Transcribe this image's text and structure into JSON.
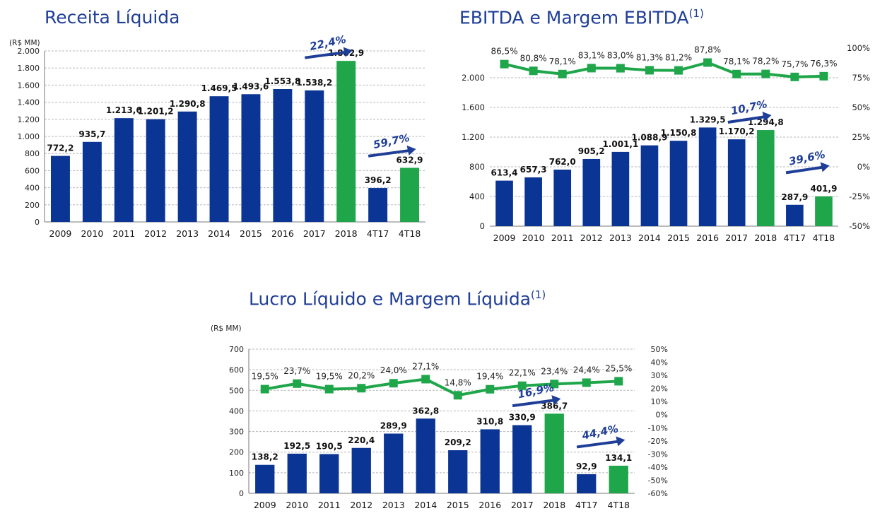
{
  "colors": {
    "bar_blue": "#0b3594",
    "bar_green": "#1fa64a",
    "title_blue": "#1f3e97",
    "arrow_blue": "#1f3e97"
  },
  "chart_data": [
    {
      "id": "receita",
      "type": "bar",
      "title": "Receita Líquida",
      "title_sup": "",
      "unit": "(R$ MM)",
      "categories": [
        "2009",
        "2010",
        "2011",
        "2012",
        "2013",
        "2014",
        "2015",
        "2016",
        "2017",
        "2018",
        "4T17",
        "4T18"
      ],
      "values": [
        772.2,
        935.7,
        1213.6,
        1201.2,
        1290.8,
        1469.5,
        1493.6,
        1553.8,
        1538.2,
        1882.9,
        396.2,
        632.9
      ],
      "value_labels": [
        "772,2",
        "935,7",
        "1.213,6",
        "1.201,2",
        "1.290,8",
        "1.469,5",
        "1.493,6",
        "1.553,8",
        "1.538,2",
        "1.882,9",
        "396,2",
        "632,9"
      ],
      "highlight": [
        9,
        11
      ],
      "ylim": [
        0,
        2000
      ],
      "yticks": [
        0,
        200,
        400,
        600,
        800,
        1000,
        1200,
        1400,
        1600,
        1800,
        2000
      ],
      "ytick_labels": [
        "0",
        "200",
        "400",
        "600",
        "800",
        "1.000",
        "1.200",
        "1.400",
        "1.600",
        "1.800",
        "2.000"
      ],
      "grid": true,
      "annotations": [
        {
          "text": "22,4%",
          "from": 8,
          "to": 9,
          "arrow_at_value": 1920
        },
        {
          "text": "59,7%",
          "from": 10,
          "to": 11,
          "arrow_at_value": 770
        }
      ]
    },
    {
      "id": "ebitda",
      "type": "bar",
      "title": "EBITDA e Margem EBITDA",
      "title_sup": "(1)",
      "unit": "",
      "categories": [
        "2009",
        "2010",
        "2011",
        "2012",
        "2013",
        "2014",
        "2015",
        "2016",
        "2017",
        "2018",
        "4T17",
        "4T18"
      ],
      "values": [
        613.4,
        657.3,
        762.0,
        905.2,
        1001.1,
        1088.9,
        1150.8,
        1329.5,
        1170.2,
        1294.8,
        287.9,
        401.9
      ],
      "value_labels": [
        "613,4",
        "657,3",
        "762,0",
        "905,2",
        "1.001,1",
        "1.088,9",
        "1.150,8",
        "1.329,5",
        "1.170,2",
        "1.294,8",
        "287,9",
        "401,9"
      ],
      "highlight": [
        9,
        11
      ],
      "ylim": [
        0,
        2400
      ],
      "yticks": [
        0,
        400,
        800,
        1200,
        1600,
        2000
      ],
      "ytick_labels": [
        "0",
        "400",
        "800",
        "1.200",
        "1.600",
        "2.000"
      ],
      "grid": true,
      "line_series": {
        "values": [
          86.5,
          80.8,
          78.1,
          83.1,
          83.0,
          81.3,
          81.2,
          87.8,
          78.1,
          78.2,
          75.7,
          76.3
        ],
        "labels": [
          "86,5%",
          "80,8%",
          "78,1%",
          "83,1%",
          "83,0%",
          "81,3%",
          "81,2%",
          "87,8%",
          "78,1%",
          "78,2%",
          "75,7%",
          "76,3%"
        ],
        "ylim": [
          -50,
          100
        ],
        "yticks": [
          -50,
          -25,
          0,
          25,
          50,
          75,
          100
        ],
        "ytick_labels": [
          "-50%",
          "-25%",
          "0%",
          "25%",
          "50%",
          "75%",
          "100%"
        ]
      },
      "annotations": [
        {
          "text": "10,7%",
          "from": 8,
          "to": 9,
          "arrow_at_value": 1400
        },
        {
          "text": "39,6%",
          "from": 10,
          "to": 11,
          "arrow_at_value": 720
        }
      ]
    },
    {
      "id": "lucro",
      "type": "bar",
      "title": "Lucro Líquido e Margem Líquida",
      "title_sup": "(1)",
      "unit": "(R$ MM)",
      "categories": [
        "2009",
        "2010",
        "2011",
        "2012",
        "2013",
        "2014",
        "2015",
        "2016",
        "2017",
        "2018",
        "4T17",
        "4T18"
      ],
      "values": [
        138.2,
        192.5,
        190.5,
        220.4,
        289.9,
        362.8,
        209.2,
        310.8,
        330.9,
        386.7,
        92.9,
        134.1
      ],
      "value_labels": [
        "138,2",
        "192,5",
        "190,5",
        "220,4",
        "289,9",
        "362,8",
        "209,2",
        "310,8",
        "330,9",
        "386,7",
        "92,9",
        "134,1"
      ],
      "highlight": [
        9,
        11
      ],
      "ylim": [
        0,
        700
      ],
      "yticks": [
        0,
        100,
        200,
        300,
        400,
        500,
        600,
        700
      ],
      "ytick_labels": [
        "0",
        "100",
        "200",
        "300",
        "400",
        "500",
        "600",
        "700"
      ],
      "grid": true,
      "line_series": {
        "values": [
          19.5,
          23.7,
          19.5,
          20.2,
          24.0,
          27.1,
          14.8,
          19.4,
          22.1,
          23.4,
          24.4,
          25.5
        ],
        "labels": [
          "19,5%",
          "23,7%",
          "19,5%",
          "20,2%",
          "24,0%",
          "27,1%",
          "14,8%",
          "19,4%",
          "22,1%",
          "23,4%",
          "24,4%",
          "25,5%"
        ],
        "ylim": [
          -60,
          50
        ],
        "yticks": [
          -60,
          -50,
          -40,
          -30,
          -20,
          -10,
          0,
          10,
          20,
          30,
          40,
          50
        ],
        "ytick_labels": [
          "-60%",
          "-50%",
          "-40%",
          "-30%",
          "-20%",
          "-10%",
          "0%",
          "10%",
          "20%",
          "30%",
          "40%",
          "50%"
        ]
      },
      "annotations": [
        {
          "text": "16,9%",
          "from": 8,
          "to": 9,
          "arrow_at_value": 425
        },
        {
          "text": "44,4%",
          "from": 10,
          "to": 11,
          "arrow_at_value": 225
        }
      ]
    }
  ]
}
